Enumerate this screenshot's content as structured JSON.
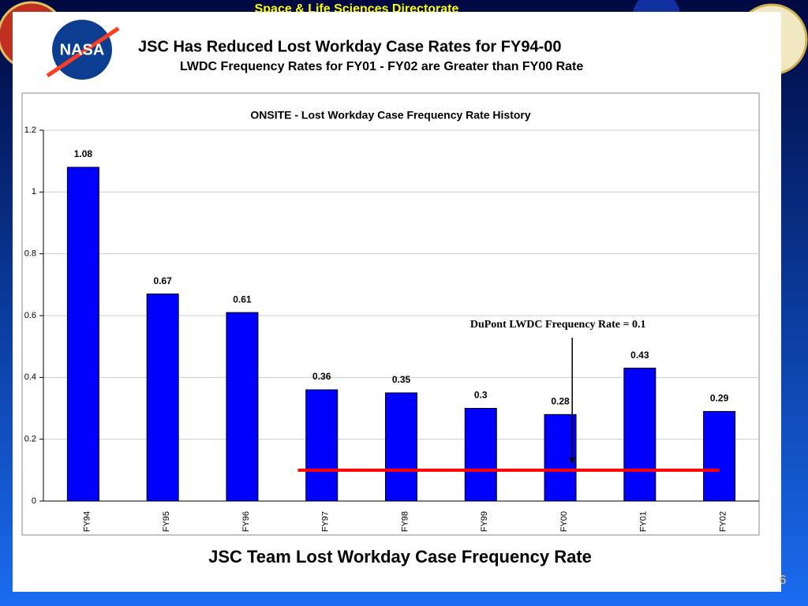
{
  "header": "Space & Life Sciences Directorate",
  "title": "JSC Has Reduced Lost Workday Case Rates for FY94-00",
  "subtitle": "LWDC Frequency Rates for FY01 - FY02 are Greater than FY00 Rate",
  "caption": "JSC Team Lost Workday Case Frequency Rate",
  "page_number": "6",
  "logo": "NASA",
  "chart_data": {
    "type": "bar",
    "title": "ONSITE - Lost Workday Case Frequency Rate History",
    "categories": [
      "FY94",
      "FY95",
      "FY96",
      "FY97",
      "FY98",
      "FY99",
      "FY00",
      "FY01",
      "FY02"
    ],
    "values": [
      1.08,
      0.67,
      0.61,
      0.36,
      0.35,
      0.3,
      0.28,
      0.43,
      0.29
    ],
    "color": "#0000ff",
    "ylim": [
      0,
      1.2
    ],
    "yticks": [
      0,
      0.2,
      0.4,
      0.6,
      0.8,
      1,
      1.2
    ],
    "grid": true,
    "reference_line": {
      "value": 0.1,
      "span": [
        "FY97",
        "FY02"
      ],
      "color": "#ff0000"
    },
    "annotation": "DuPont LWDC Frequency Rate = 0.1"
  }
}
